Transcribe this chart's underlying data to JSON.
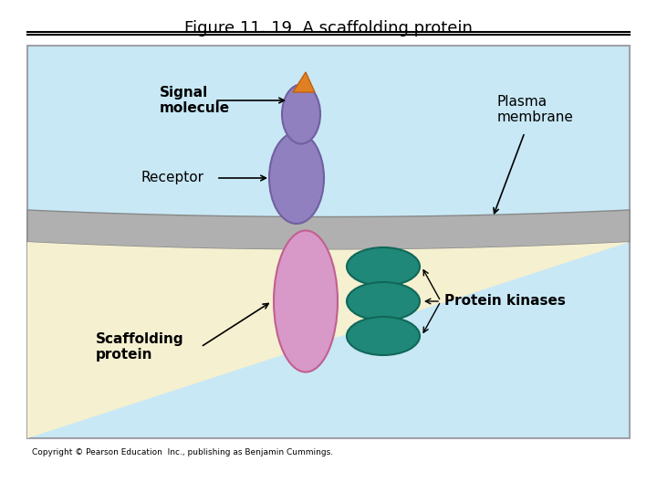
{
  "title": "Figure 11. 19  A scaffolding protein",
  "bg_outer": "#ffffff",
  "bg_sky": "#c8e8f5",
  "bg_membrane_outer": "#a0a0a0",
  "bg_cell": "#f5f0d0",
  "membrane_color": "#b0b0b0",
  "receptor_color": "#d898c8",
  "signal_molecule_color": "#9080c0",
  "signal_tip_color": "#e08020",
  "kinase_color": "#208878",
  "labels": {
    "signal_molecule": "Signal\nmolecule",
    "plasma_membrane": "Plasma\nmembrane",
    "receptor": "Receptor",
    "protein_kinases": "Protein kinases",
    "scaffolding_protein": "Scaffolding\nprotein"
  },
  "copyright": "Copyright © Pearson Education  Inc., publishing as Benjamin Cummings.",
  "fig_width": 7.2,
  "fig_height": 5.4
}
